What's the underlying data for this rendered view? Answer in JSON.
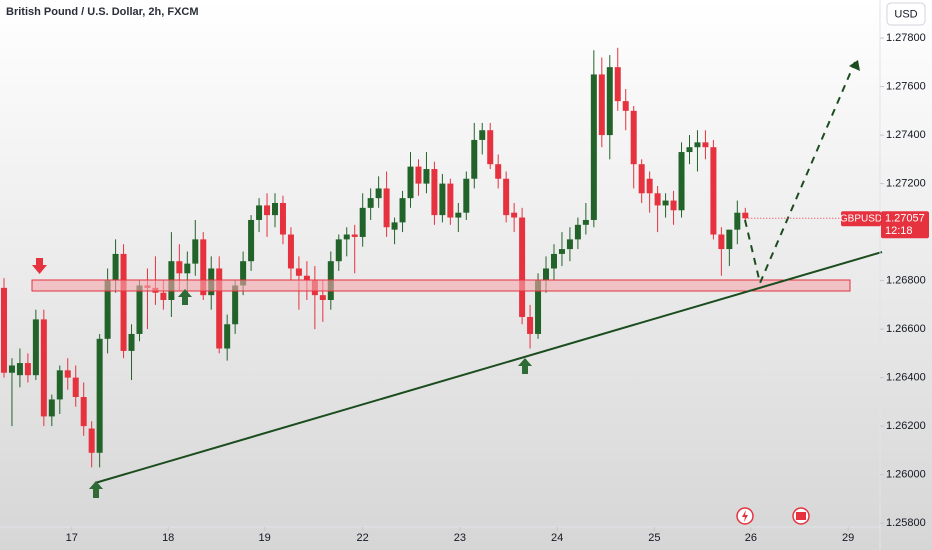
{
  "chart_data": {
    "type": "candlestick",
    "title": "British Pound / U.S. Dollar, 2h, FXCM",
    "currency": "USD",
    "symbol": "GBPUSD",
    "last_price": 1.27057,
    "countdown": "12:18",
    "up_color": "#22632a",
    "down_color": "#e5323e",
    "categories": [
      null,
      null,
      null,
      null,
      null,
      null,
      null,
      null,
      null,
      null,
      null,
      null,
      null,
      null,
      null,
      null,
      null,
      null,
      null,
      null,
      null,
      null,
      null,
      null,
      null,
      null,
      null,
      null,
      null,
      null,
      null,
      null,
      null,
      null,
      null,
      null,
      null,
      null,
      null,
      null,
      null,
      null,
      null,
      null,
      null,
      null,
      null,
      null,
      null,
      null,
      null,
      null,
      null,
      null,
      null,
      null,
      null,
      null,
      null,
      null,
      null,
      null,
      null,
      null,
      null,
      null,
      null,
      null,
      null,
      null,
      null,
      null,
      null,
      null,
      null,
      null,
      null,
      null,
      null,
      null,
      null,
      null,
      null,
      null,
      null,
      null,
      null,
      null,
      null,
      null,
      null,
      null,
      null,
      null
    ],
    "open": [
      1.2677,
      1.2642,
      1.2641,
      1.2646,
      1.2641,
      1.2664,
      1.2624,
      1.2631,
      1.2643,
      1.264,
      1.2632,
      1.2619,
      1.2609,
      1.2656,
      1.268,
      1.2691,
      1.2651,
      1.2658,
      1.2678,
      1.2677,
      1.2675,
      1.2672,
      1.2688,
      1.2683,
      1.2687,
      1.2697,
      1.2674,
      1.2685,
      1.2652,
      1.2662,
      1.2678,
      1.2688,
      1.2705,
      1.2711,
      1.2707,
      1.2712,
      1.2699,
      1.2685,
      1.2682,
      1.268,
      1.2674,
      1.2672,
      1.2688,
      1.2697,
      1.2699,
      1.2698,
      1.271,
      1.2714,
      1.2718,
      1.2701,
      1.2704,
      1.2714,
      1.2727,
      1.272,
      1.2726,
      1.2707,
      1.272,
      1.2706,
      1.2708,
      1.2722,
      1.2738,
      1.2742,
      1.2728,
      1.2722,
      1.2708,
      1.2706,
      1.2665,
      1.2658,
      1.268,
      1.2685,
      1.2691,
      1.2693,
      1.2697,
      1.2703,
      1.2705,
      1.2765,
      1.274,
      1.2768,
      1.2754,
      1.275,
      1.2728,
      1.2722,
      1.2716,
      1.2711,
      1.2713,
      1.2709,
      1.2733,
      1.2735,
      1.2737,
      1.2735,
      1.2699,
      1.2693,
      1.2701,
      1.2708
    ],
    "high": [
      1.2681,
      1.2648,
      1.2652,
      1.265,
      1.2668,
      1.2668,
      1.2633,
      1.2645,
      1.2648,
      1.2645,
      1.2638,
      1.2622,
      1.2658,
      1.2685,
      1.2697,
      1.2695,
      1.2662,
      1.268,
      1.2685,
      1.269,
      1.268,
      1.27,
      1.2695,
      1.2692,
      1.2705,
      1.27,
      1.269,
      1.269,
      1.2666,
      1.268,
      1.2692,
      1.2707,
      1.2714,
      1.2716,
      1.2716,
      1.2715,
      1.2702,
      1.269,
      1.2688,
      1.2686,
      1.268,
      1.2692,
      1.2699,
      1.2702,
      1.2703,
      1.2716,
      1.2718,
      1.2723,
      1.2725,
      1.2706,
      1.2717,
      1.2733,
      1.273,
      1.2733,
      1.2729,
      1.2724,
      1.2722,
      1.2712,
      1.2725,
      1.2745,
      1.2745,
      1.2745,
      1.2732,
      1.2725,
      1.2712,
      1.271,
      1.267,
      1.2683,
      1.269,
      1.2695,
      1.27,
      1.2702,
      1.2706,
      1.2712,
      1.2775,
      1.2772,
      1.2773,
      1.2776,
      1.2759,
      1.2752,
      1.273,
      1.2725,
      1.2719,
      1.2716,
      1.2717,
      1.2737,
      1.274,
      1.2742,
      1.2742,
      1.2738,
      1.2702,
      1.2701,
      1.2713,
      1.271
    ],
    "low": [
      1.264,
      1.262,
      1.2636,
      1.2638,
      1.2639,
      1.262,
      1.262,
      1.2625,
      1.2635,
      1.2628,
      1.2616,
      1.2603,
      1.2603,
      1.265,
      1.2675,
      1.2648,
      1.2639,
      1.2655,
      1.266,
      1.267,
      1.2668,
      1.2665,
      1.2676,
      1.2675,
      1.2682,
      1.2672,
      1.2668,
      1.265,
      1.2647,
      1.2658,
      1.2674,
      1.2684,
      1.27,
      1.2698,
      1.2702,
      1.2695,
      1.268,
      1.2668,
      1.2672,
      1.266,
      1.2663,
      1.2668,
      1.2684,
      1.269,
      1.2683,
      1.2694,
      1.2705,
      1.271,
      1.2698,
      1.2695,
      1.27,
      1.271,
      1.2715,
      1.2716,
      1.2703,
      1.2704,
      1.2703,
      1.27,
      1.2705,
      1.2718,
      1.2732,
      1.2726,
      1.2718,
      1.2704,
      1.27,
      1.2662,
      1.2652,
      1.2656,
      1.2675,
      1.268,
      1.2686,
      1.2688,
      1.2693,
      1.2699,
      1.2702,
      1.2735,
      1.273,
      1.275,
      1.2742,
      1.2718,
      1.2712,
      1.2708,
      1.27,
      1.2706,
      1.2703,
      1.2706,
      1.2728,
      1.2725,
      1.273,
      1.2697,
      1.2682,
      1.2686,
      1.2695,
      1.2704
    ],
    "close": [
      1.2642,
      1.2645,
      1.2646,
      1.2641,
      1.2664,
      1.2624,
      1.2631,
      1.2643,
      1.264,
      1.2632,
      1.262,
      1.2609,
      1.2656,
      1.268,
      1.2691,
      1.2651,
      1.2658,
      1.2678,
      1.2677,
      1.2675,
      1.2672,
      1.2688,
      1.2683,
      1.2687,
      1.2697,
      1.2674,
      1.2685,
      1.2652,
      1.2662,
      1.2678,
      1.2688,
      1.2705,
      1.2711,
      1.2707,
      1.2712,
      1.2699,
      1.2685,
      1.2682,
      1.268,
      1.2674,
      1.2672,
      1.2688,
      1.2697,
      1.2699,
      1.2698,
      1.271,
      1.2714,
      1.2718,
      1.2702,
      1.2704,
      1.2714,
      1.2727,
      1.272,
      1.2726,
      1.2707,
      1.272,
      1.2706,
      1.2708,
      1.2722,
      1.2738,
      1.2742,
      1.2728,
      1.2722,
      1.2707,
      1.2706,
      1.2665,
      1.2658,
      1.268,
      1.2685,
      1.2691,
      1.2693,
      1.2697,
      1.2703,
      1.2705,
      1.2765,
      1.274,
      1.2768,
      1.2754,
      1.275,
      1.2728,
      1.2716,
      1.2716,
      1.2711,
      1.2713,
      1.2709,
      1.2733,
      1.2735,
      1.2737,
      1.2735,
      1.2699,
      1.2693,
      1.2701,
      1.2708,
      1.27057
    ],
    "xlim": [
      -0.5,
      109.9
    ],
    "xticks": [
      {
        "value": 8.5,
        "label": "17"
      },
      {
        "value": 20.6,
        "label": "18"
      },
      {
        "value": 32.7,
        "label": "19"
      },
      {
        "value": 45,
        "label": "22"
      },
      {
        "value": 57.2,
        "label": "23"
      },
      {
        "value": 69.4,
        "label": "24"
      },
      {
        "value": 81.6,
        "label": "25"
      },
      {
        "value": 93.7,
        "label": "26"
      },
      {
        "value": 105.9,
        "label": "29"
      }
    ],
    "ylim": [
      1.25784,
      1.27957
    ],
    "yticks": [
      {
        "value": 1.258,
        "label": "1.25800"
      },
      {
        "value": 1.26,
        "label": "1.26000"
      },
      {
        "value": 1.262,
        "label": "1.26200"
      },
      {
        "value": 1.264,
        "label": "1.26400"
      },
      {
        "value": 1.266,
        "label": "1.26600"
      },
      {
        "value": 1.268,
        "label": "1.26800"
      },
      {
        "value": 1.272,
        "label": "1.27200"
      },
      {
        "value": 1.274,
        "label": "1.27400"
      },
      {
        "value": 1.276,
        "label": "1.27600"
      },
      {
        "value": 1.278,
        "label": "1.27800"
      }
    ]
  }
}
